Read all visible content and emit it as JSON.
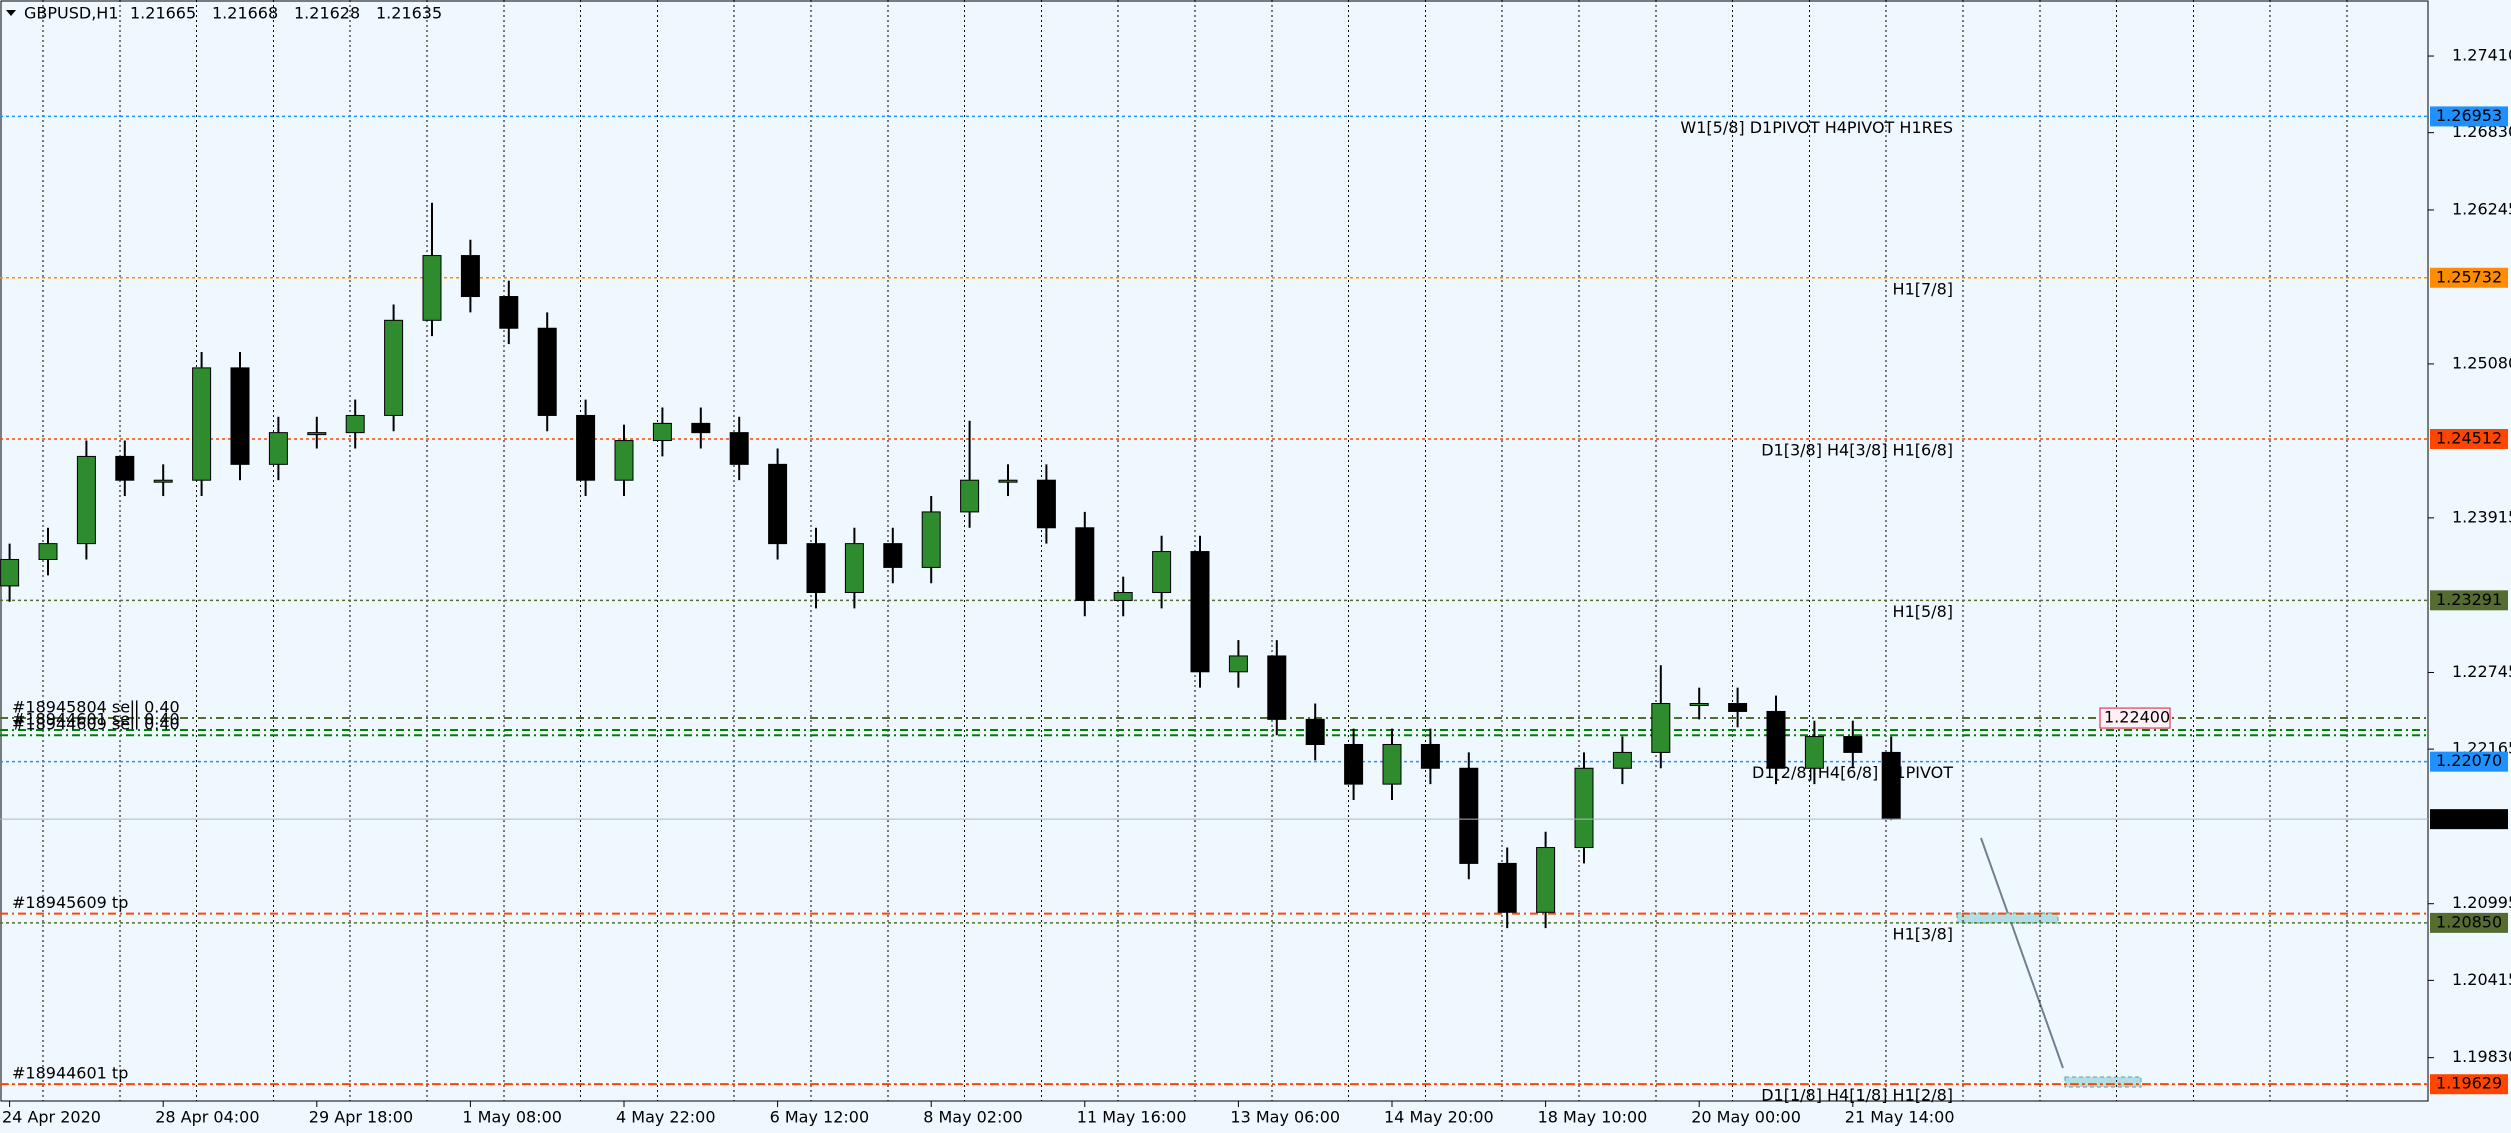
{
  "chart_data": {
    "type": "candlestick",
    "symbol": "GBPUSD,H1",
    "quote": [
      1.21665,
      1.21668,
      1.21628,
      1.21635
    ],
    "categories": [
      "24 Apr 2020",
      null,
      null,
      null,
      "28 Apr 04:00",
      null,
      null,
      null,
      "29 Apr 18:00",
      null,
      null,
      null,
      "1 May 08:00",
      null,
      null,
      null,
      "4 May 22:00",
      null,
      null,
      null,
      "6 May 12:00",
      null,
      null,
      null,
      "8 May 02:00",
      null,
      null,
      null,
      "11 May 16:00",
      null,
      null,
      null,
      "13 May 06:00",
      null,
      null,
      null,
      "14 May 20:00",
      null,
      null,
      null,
      "18 May 10:00",
      null,
      null,
      null,
      "20 May 00:00",
      null,
      null,
      null,
      "21 May 14:00",
      null
    ],
    "open": [
      1.234,
      1.236,
      1.2372,
      1.2438,
      1.242,
      1.242,
      1.2505,
      1.2432,
      1.2456,
      1.2456,
      1.2469,
      1.2541,
      1.259,
      1.2559,
      1.2535,
      1.2469,
      1.242,
      1.245,
      1.2463,
      1.2456,
      1.2432,
      1.2372,
      1.2335,
      1.2372,
      1.2354,
      1.2396,
      1.242,
      1.242,
      1.2384,
      1.2329,
      1.2335,
      1.2366,
      1.2275,
      1.2287,
      1.2239,
      1.222,
      1.219,
      1.222,
      1.2202,
      1.213,
      1.2093,
      1.2142,
      1.2202,
      1.2214,
      1.2251,
      1.2251,
      1.2245,
      1.2202,
      1.2226,
      1.2214
    ],
    "high": [
      1.2372,
      1.2384,
      1.245,
      1.245,
      1.2432,
      1.2517,
      1.2517,
      1.2468,
      1.2468,
      1.2481,
      1.2553,
      1.263,
      1.2602,
      1.2571,
      1.2547,
      1.2481,
      1.2462,
      1.2475,
      1.2475,
      1.2468,
      1.2444,
      1.2384,
      1.2384,
      1.2384,
      1.2408,
      1.2465,
      1.2432,
      1.2432,
      1.2396,
      1.2347,
      1.2378,
      1.2378,
      1.2299,
      1.2299,
      1.2251,
      1.2232,
      1.2232,
      1.2232,
      1.2214,
      1.2142,
      1.2154,
      1.2214,
      1.2226,
      1.228,
      1.2263,
      1.2263,
      1.2257,
      1.2238,
      1.2238,
      1.2226
    ],
    "low": [
      1.2328,
      1.2348,
      1.236,
      1.2408,
      1.2408,
      1.2408,
      1.242,
      1.242,
      1.2444,
      1.2444,
      1.2457,
      1.2529,
      1.2547,
      1.2523,
      1.2457,
      1.2408,
      1.2408,
      1.2438,
      1.2444,
      1.242,
      1.236,
      1.2323,
      1.2323,
      1.2342,
      1.2342,
      1.2384,
      1.2408,
      1.2372,
      1.2317,
      1.2317,
      1.2323,
      1.2263,
      1.2263,
      1.2227,
      1.2208,
      1.2178,
      1.2178,
      1.219,
      1.2118,
      1.2081,
      1.2081,
      1.213,
      1.219,
      1.2202,
      1.2239,
      1.2233,
      1.219,
      1.219,
      1.2202,
      1.21628
    ],
    "close": [
      1.236,
      1.2372,
      1.2438,
      1.242,
      1.242,
      1.2505,
      1.2432,
      1.2456,
      1.2456,
      1.2469,
      1.2541,
      1.259,
      1.2559,
      1.2535,
      1.2469,
      1.242,
      1.245,
      1.2463,
      1.2456,
      1.2432,
      1.2372,
      1.2335,
      1.2372,
      1.2354,
      1.2396,
      1.242,
      1.242,
      1.2384,
      1.2329,
      1.2335,
      1.2366,
      1.2275,
      1.2287,
      1.2239,
      1.222,
      1.219,
      1.222,
      1.2202,
      1.213,
      1.2093,
      1.2142,
      1.2202,
      1.2214,
      1.2251,
      1.2251,
      1.2245,
      1.2202,
      1.2226,
      1.2214,
      1.21635
    ],
    "up_color": "#2e8b2e",
    "down_color": "#000000",
    "ylim": [
      1.19502,
      1.27834
    ],
    "yticks": [
      {
        "value": 1.2741,
        "label": "1.27410"
      },
      {
        "value": 1.2683,
        "label": "1.26830"
      },
      1.26245,
      {
        "value": 1.2508,
        "label": "1.25080"
      },
      1.23915,
      1.22745,
      1.22165,
      1.20995,
      1.20415,
      {
        "value": 1.1983,
        "label": "1.19830"
      }
    ],
    "grid": true,
    "levels": [
      {
        "price": 1.26953,
        "price_label": "1.26953",
        "label": "W1[5/8] D1PIVOT H4PIVOT H1RES",
        "color": "#1e90ff"
      },
      {
        "price": 1.25732,
        "price_label": "1.25732",
        "label": "H1[7/8]",
        "color": "#ff8c00"
      },
      {
        "price": 1.24512,
        "price_label": "1.24512",
        "label": "D1[3/8] H4[3/8] H1[6/8]",
        "color": "#ff4500"
      },
      {
        "price": 1.23291,
        "price_label": "1.23291",
        "label": "H1[5/8]",
        "color": "#556b2f"
      },
      {
        "price": 1.2207,
        "price_label": "1.22070",
        "label": "D1[2/8] H4[6/8] H1PIVOT",
        "color": "#1e90ff"
      },
      {
        "price": 1.2085,
        "price_label": "1.20850",
        "label": "H1[3/8]",
        "color": "#556b2f"
      },
      {
        "price": 1.19629,
        "price_label": "1.19629",
        "label": "D1[1/8] H4[1/8] H1[2/8]",
        "color": "#ff4500"
      }
    ],
    "current_price": 1.21635,
    "orders": [
      {
        "price": 1.224,
        "label": "#18945804 sell 0.40",
        "color": "#556b2f"
      },
      {
        "price": 1.2231,
        "label": "#18944601 sell 0.40",
        "color": "#008000"
      },
      {
        "price": 1.2227,
        "label": "#18944609 sell 0.40",
        "color": "#008000"
      },
      {
        "price": 1.2092,
        "label": "#18945609 tp",
        "color": "#ff4500"
      },
      {
        "price": 1.1963,
        "label": "#18944601 tp",
        "color": "#ff4500"
      }
    ],
    "stop_label": {
      "value": 1.224,
      "label": "1.22400"
    }
  }
}
